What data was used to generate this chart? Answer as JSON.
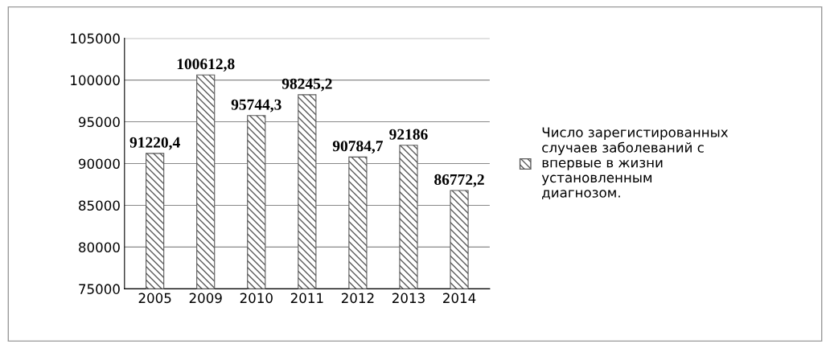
{
  "chart_data": {
    "type": "bar",
    "categories": [
      "2005",
      "2009",
      "2010",
      "2011",
      "2012",
      "2013",
      "2014"
    ],
    "series": [
      {
        "name": "Число зарегистированных\nслучаев заболеваний с\nвпервые в жизни\nустановленным\nдиагнозом.",
        "color": "#595959",
        "values": [
          91220.4,
          100612.8,
          95744.3,
          98245.2,
          90784.7,
          92186,
          86772.2
        ],
        "value_labels": [
          "91220,4",
          "100612,8",
          "95744,3",
          "98245,2",
          "90784,7",
          "92186",
          "86772,2"
        ]
      }
    ],
    "ylim": [
      75000,
      105000
    ],
    "yticks": [
      75000,
      80000,
      85000,
      90000,
      95000,
      100000,
      105000
    ],
    "grid": "y",
    "legend": "right"
  }
}
